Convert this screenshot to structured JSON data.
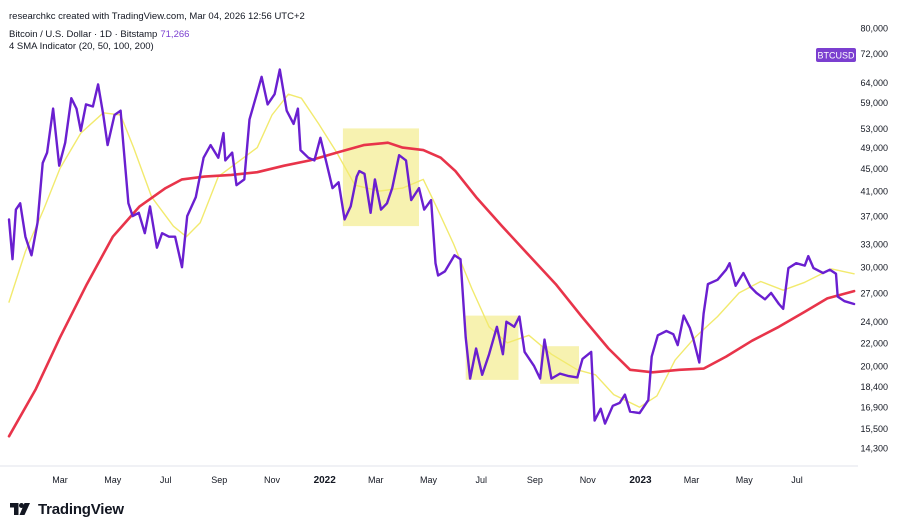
{
  "header": {
    "attribution": "researchkc created with TradingView.com, Mar 04, 2026 12:56 UTC+2",
    "symbol_line": "Bitcoin / U.S. Dollar · 1D · Bitstamp",
    "price": "71,266",
    "indicator_line": "4 SMA Indicator (20, 50, 100, 200)"
  },
  "symbol_badge": "BTCUSD",
  "logo_text": "TradingView",
  "colors": {
    "price_line": "#6a1fd0",
    "sma_fast": "#f2ea6e",
    "sma_slow": "#e8344a",
    "highlight": "#f7f2b0",
    "badge_bg": "#7b3fd0"
  },
  "chart_data": {
    "type": "line",
    "x_ticks": [
      "Mar",
      "May",
      "Jul",
      "Sep",
      "Nov",
      "2022",
      "Mar",
      "May",
      "Jul",
      "Sep",
      "Nov",
      "2023",
      "Mar",
      "May",
      "Jul"
    ],
    "x_tick_bold": [
      false,
      false,
      false,
      false,
      false,
      true,
      false,
      false,
      false,
      false,
      false,
      true,
      false,
      false,
      false
    ],
    "x_range": [
      "2021-01-01",
      "2023-09-06"
    ],
    "y_scale": "log",
    "y_range": [
      13500,
      82000
    ],
    "y_ticks": [
      80000,
      72000,
      64000,
      59000,
      53000,
      49000,
      45000,
      41000,
      37000,
      33000,
      30000,
      27000,
      24000,
      22000,
      20000,
      18400,
      16900,
      15500,
      14300
    ],
    "highlights": [
      {
        "x": [
          "2022-01-22",
          "2022-04-20"
        ],
        "y": [
          35500,
          53000
        ]
      },
      {
        "x": [
          "2022-06-13",
          "2022-08-13"
        ],
        "y": [
          18900,
          24600
        ]
      },
      {
        "x": [
          "2022-09-07",
          "2022-10-22"
        ],
        "y": [
          18600,
          21700
        ]
      }
    ],
    "series": [
      {
        "points": [
          [
            "2021-01-01",
            36500
          ],
          [
            "2021-01-05",
            31000
          ],
          [
            "2021-01-09",
            38000
          ],
          [
            "2021-01-14",
            39000
          ],
          [
            "2021-01-20",
            34000
          ],
          [
            "2021-01-27",
            31500
          ],
          [
            "2021-02-03",
            36000
          ],
          [
            "2021-02-09",
            46000
          ],
          [
            "2021-02-14",
            48000
          ],
          [
            "2021-02-21",
            57500
          ],
          [
            "2021-02-28",
            45500
          ],
          [
            "2021-03-07",
            50000
          ],
          [
            "2021-03-14",
            60000
          ],
          [
            "2021-03-20",
            57500
          ],
          [
            "2021-03-25",
            52500
          ],
          [
            "2021-03-31",
            58500
          ],
          [
            "2021-04-08",
            58000
          ],
          [
            "2021-04-14",
            63500
          ],
          [
            "2021-04-20",
            56000
          ],
          [
            "2021-04-25",
            49500
          ],
          [
            "2021-05-03",
            56000
          ],
          [
            "2021-05-10",
            57000
          ],
          [
            "2021-05-13",
            50000
          ],
          [
            "2021-05-19",
            39000
          ],
          [
            "2021-05-24",
            37000
          ],
          [
            "2021-05-31",
            37500
          ],
          [
            "2021-06-07",
            34500
          ],
          [
            "2021-06-13",
            38500
          ],
          [
            "2021-06-21",
            32500
          ],
          [
            "2021-06-27",
            34500
          ],
          [
            "2021-07-05",
            34000
          ],
          [
            "2021-07-12",
            34000
          ],
          [
            "2021-07-20",
            30000
          ],
          [
            "2021-07-26",
            37000
          ],
          [
            "2021-08-05",
            40000
          ],
          [
            "2021-08-14",
            47000
          ],
          [
            "2021-08-22",
            49500
          ],
          [
            "2021-08-31",
            47000
          ],
          [
            "2021-09-06",
            52000
          ],
          [
            "2021-09-08",
            46500
          ],
          [
            "2021-09-16",
            48000
          ],
          [
            "2021-09-21",
            42000
          ],
          [
            "2021-09-30",
            43000
          ],
          [
            "2021-10-06",
            55000
          ],
          [
            "2021-10-15",
            61500
          ],
          [
            "2021-10-20",
            65500
          ],
          [
            "2021-10-27",
            58500
          ],
          [
            "2021-11-04",
            61000
          ],
          [
            "2021-11-10",
            67500
          ],
          [
            "2021-11-18",
            57000
          ],
          [
            "2021-11-26",
            54000
          ],
          [
            "2021-12-01",
            57500
          ],
          [
            "2021-12-04",
            48500
          ],
          [
            "2021-12-13",
            47000
          ],
          [
            "2021-12-20",
            46500
          ],
          [
            "2021-12-27",
            51000
          ],
          [
            "2022-01-03",
            46000
          ],
          [
            "2022-01-10",
            41500
          ],
          [
            "2022-01-17",
            42500
          ],
          [
            "2022-01-24",
            36500
          ],
          [
            "2022-01-31",
            38500
          ],
          [
            "2022-02-07",
            43500
          ],
          [
            "2022-02-10",
            44500
          ],
          [
            "2022-02-16",
            44000
          ],
          [
            "2022-02-23",
            37500
          ],
          [
            "2022-02-28",
            43000
          ],
          [
            "2022-03-07",
            38000
          ],
          [
            "2022-03-14",
            39000
          ],
          [
            "2022-03-20",
            41500
          ],
          [
            "2022-03-28",
            47500
          ],
          [
            "2022-04-05",
            46500
          ],
          [
            "2022-04-11",
            39500
          ],
          [
            "2022-04-20",
            41500
          ],
          [
            "2022-04-26",
            38000
          ],
          [
            "2022-05-04",
            39500
          ],
          [
            "2022-05-09",
            30500
          ],
          [
            "2022-05-12",
            29000
          ],
          [
            "2022-05-20",
            29500
          ],
          [
            "2022-05-31",
            31500
          ],
          [
            "2022-06-07",
            31000
          ],
          [
            "2022-06-13",
            22500
          ],
          [
            "2022-06-18",
            19000
          ],
          [
            "2022-06-25",
            21500
          ],
          [
            "2022-07-02",
            19300
          ],
          [
            "2022-07-10",
            21000
          ],
          [
            "2022-07-19",
            23500
          ],
          [
            "2022-07-26",
            21000
          ],
          [
            "2022-07-30",
            24000
          ],
          [
            "2022-08-08",
            23500
          ],
          [
            "2022-08-14",
            24500
          ],
          [
            "2022-08-20",
            21200
          ],
          [
            "2022-08-31",
            20000
          ],
          [
            "2022-09-07",
            19000
          ],
          [
            "2022-09-12",
            22300
          ],
          [
            "2022-09-20",
            19000
          ],
          [
            "2022-09-30",
            19400
          ],
          [
            "2022-10-10",
            19200
          ],
          [
            "2022-10-20",
            19100
          ],
          [
            "2022-10-26",
            20600
          ],
          [
            "2022-11-05",
            21200
          ],
          [
            "2022-11-09",
            16000
          ],
          [
            "2022-11-16",
            16800
          ],
          [
            "2022-11-21",
            15800
          ],
          [
            "2022-11-30",
            17000
          ],
          [
            "2022-12-08",
            17200
          ],
          [
            "2022-12-14",
            17800
          ],
          [
            "2022-12-20",
            16600
          ],
          [
            "2022-12-31",
            16500
          ],
          [
            "2023-01-10",
            17400
          ],
          [
            "2023-01-14",
            20800
          ],
          [
            "2023-01-21",
            22700
          ],
          [
            "2023-01-31",
            23100
          ],
          [
            "2023-02-08",
            22800
          ],
          [
            "2023-02-13",
            21800
          ],
          [
            "2023-02-20",
            24600
          ],
          [
            "2023-02-27",
            23400
          ],
          [
            "2023-03-03",
            22400
          ],
          [
            "2023-03-10",
            20300
          ],
          [
            "2023-03-15",
            24800
          ],
          [
            "2023-03-20",
            28000
          ],
          [
            "2023-03-31",
            28500
          ],
          [
            "2023-04-10",
            29700
          ],
          [
            "2023-04-14",
            30500
          ],
          [
            "2023-04-21",
            27800
          ],
          [
            "2023-04-30",
            29300
          ],
          [
            "2023-05-08",
            27700
          ],
          [
            "2023-05-15",
            27000
          ],
          [
            "2023-05-25",
            26300
          ],
          [
            "2023-06-01",
            27000
          ],
          [
            "2023-06-10",
            25800
          ],
          [
            "2023-06-15",
            25300
          ],
          [
            "2023-06-21",
            29900
          ],
          [
            "2023-06-30",
            30500
          ],
          [
            "2023-07-10",
            30200
          ],
          [
            "2023-07-14",
            31400
          ],
          [
            "2023-07-20",
            29900
          ],
          [
            "2023-07-31",
            29300
          ],
          [
            "2023-08-08",
            29700
          ],
          [
            "2023-08-15",
            29200
          ],
          [
            "2023-08-17",
            26600
          ],
          [
            "2023-08-25",
            26100
          ],
          [
            "2023-09-05",
            25800
          ]
        ]
      },
      {
        "points": [
          [
            "2021-01-01",
            26000
          ],
          [
            "2021-01-20",
            32000
          ],
          [
            "2021-02-10",
            38000
          ],
          [
            "2021-03-01",
            45000
          ],
          [
            "2021-03-25",
            52000
          ],
          [
            "2021-04-20",
            56500
          ],
          [
            "2021-05-10",
            56000
          ],
          [
            "2021-05-25",
            49000
          ],
          [
            "2021-06-15",
            40000
          ],
          [
            "2021-07-10",
            35500
          ],
          [
            "2021-07-25",
            34000
          ],
          [
            "2021-08-10",
            36000
          ],
          [
            "2021-08-31",
            43500
          ],
          [
            "2021-09-25",
            46500
          ],
          [
            "2021-10-15",
            49000
          ],
          [
            "2021-11-01",
            56000
          ],
          [
            "2021-11-20",
            61000
          ],
          [
            "2021-12-05",
            60000
          ],
          [
            "2021-12-25",
            54000
          ],
          [
            "2022-01-15",
            48000
          ],
          [
            "2022-02-05",
            42000
          ],
          [
            "2022-03-05",
            41000
          ],
          [
            "2022-04-01",
            41500
          ],
          [
            "2022-04-25",
            43000
          ],
          [
            "2022-05-10",
            38500
          ],
          [
            "2022-05-30",
            33000
          ],
          [
            "2022-06-20",
            27500
          ],
          [
            "2022-07-10",
            23500
          ],
          [
            "2022-07-31",
            22000
          ],
          [
            "2022-08-25",
            22700
          ],
          [
            "2022-09-20",
            21000
          ],
          [
            "2022-10-20",
            19700
          ],
          [
            "2022-11-10",
            19300
          ],
          [
            "2022-12-01",
            17800
          ],
          [
            "2022-12-31",
            16900
          ],
          [
            "2023-01-20",
            17700
          ],
          [
            "2023-02-10",
            20500
          ],
          [
            "2023-03-05",
            22500
          ],
          [
            "2023-03-31",
            24500
          ],
          [
            "2023-04-25",
            27000
          ],
          [
            "2023-05-20",
            28300
          ],
          [
            "2023-06-15",
            27300
          ],
          [
            "2023-07-10",
            28200
          ],
          [
            "2023-08-10",
            29800
          ],
          [
            "2023-09-05",
            29200
          ]
        ]
      },
      {
        "points": [
          [
            "2021-01-01",
            15000
          ],
          [
            "2021-02-01",
            18200
          ],
          [
            "2021-03-01",
            22500
          ],
          [
            "2021-04-01",
            28000
          ],
          [
            "2021-05-01",
            34000
          ],
          [
            "2021-06-01",
            38500
          ],
          [
            "2021-07-01",
            41500
          ],
          [
            "2021-07-20",
            43000
          ],
          [
            "2021-08-15",
            43500
          ],
          [
            "2021-09-15",
            43800
          ],
          [
            "2021-10-15",
            44300
          ],
          [
            "2021-11-15",
            45500
          ],
          [
            "2021-12-15",
            46500
          ],
          [
            "2022-01-15",
            48000
          ],
          [
            "2022-02-15",
            49500
          ],
          [
            "2022-03-15",
            50000
          ],
          [
            "2022-04-01",
            49000
          ],
          [
            "2022-04-25",
            48500
          ],
          [
            "2022-05-15",
            47000
          ],
          [
            "2022-06-01",
            44500
          ],
          [
            "2022-06-25",
            40000
          ],
          [
            "2022-07-25",
            35500
          ],
          [
            "2022-08-25",
            31500
          ],
          [
            "2022-09-25",
            28000
          ],
          [
            "2022-10-25",
            24500
          ],
          [
            "2022-11-25",
            21500
          ],
          [
            "2022-12-20",
            19700
          ],
          [
            "2023-01-15",
            19500
          ],
          [
            "2023-02-15",
            19700
          ],
          [
            "2023-03-15",
            19800
          ],
          [
            "2023-04-10",
            20800
          ],
          [
            "2023-05-10",
            22200
          ],
          [
            "2023-06-10",
            23500
          ],
          [
            "2023-07-10",
            25000
          ],
          [
            "2023-08-05",
            26400
          ],
          [
            "2023-09-05",
            27200
          ]
        ]
      }
    ]
  }
}
